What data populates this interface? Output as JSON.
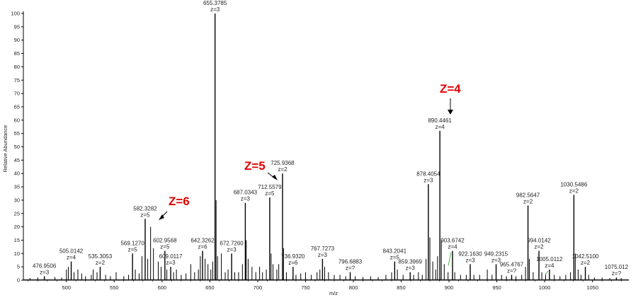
{
  "chart_data": {
    "type": "bar",
    "xlabel": "m/z",
    "ylabel": "Relative Abundance",
    "xlim": [
      455,
      1088
    ],
    "ylim": [
      0,
      100
    ],
    "xticks": [
      500,
      550,
      600,
      650,
      700,
      750,
      800,
      850,
      900,
      950,
      1000,
      1050
    ],
    "yticks": [
      0,
      5,
      10,
      15,
      20,
      25,
      30,
      35,
      40,
      45,
      50,
      55,
      60,
      65,
      70,
      75,
      80,
      85,
      90,
      95,
      100
    ],
    "peaks": [
      {
        "mz": 476.9506,
        "intensity": 1.5,
        "mz_label": "476.9506",
        "z_label": "z=3"
      },
      {
        "mz": 505.0142,
        "intensity": 7,
        "mz_label": "505.0142",
        "z_label": "z=4"
      },
      {
        "mz": 535.3053,
        "intensity": 5,
        "mz_label": "535.3053",
        "z_label": "z=2"
      },
      {
        "mz": 569.127,
        "intensity": 10,
        "mz_label": "569.1270",
        "z_label": "z=5"
      },
      {
        "mz": 582.3282,
        "intensity": 23,
        "mz_label": "582.3282",
        "z_label": "z=5"
      },
      {
        "mz": 602.9568,
        "intensity": 11,
        "mz_label": "602.9568",
        "z_label": "z=5"
      },
      {
        "mz": 609.0117,
        "intensity": 5,
        "mz_label": "609.0117",
        "z_label": "z=3"
      },
      {
        "mz": 642.3262,
        "intensity": 11,
        "mz_label": "642.3262",
        "z_label": "z=6"
      },
      {
        "mz": 655.3785,
        "intensity": 100,
        "mz_label": "655.3785",
        "z_label": "z=3"
      },
      {
        "mz": 672.726,
        "intensity": 10,
        "mz_label": "672.7260",
        "z_label": "z=3"
      },
      {
        "mz": 687.0343,
        "intensity": 29,
        "mz_label": "687.0343",
        "z_label": "z=3"
      },
      {
        "mz": 712.5579,
        "intensity": 31,
        "mz_label": "712.5579",
        "z_label": "z=5"
      },
      {
        "mz": 725.9368,
        "intensity": 40,
        "mz_label": "725.9368",
        "z_label": "z=2"
      },
      {
        "mz": 736.932,
        "intensity": 5,
        "mz_label": "736.9320",
        "z_label": "z=6"
      },
      {
        "mz": 767.7273,
        "intensity": 8,
        "mz_label": "767.7273",
        "z_label": "z=3"
      },
      {
        "mz": 796.6883,
        "intensity": 3,
        "mz_label": "796.6883",
        "z_label": "z=?"
      },
      {
        "mz": 843.2041,
        "intensity": 7,
        "mz_label": "843.2041",
        "z_label": "z=5"
      },
      {
        "mz": 859.3969,
        "intensity": 3,
        "mz_label": "859.3969",
        "z_label": "z=3"
      },
      {
        "mz": 878.4054,
        "intensity": 36,
        "mz_label": "878.4054",
        "z_label": "z=3"
      },
      {
        "mz": 890.4461,
        "intensity": 56,
        "mz_label": "890.4461",
        "z_label": "z=4"
      },
      {
        "mz": 903.6742,
        "intensity": 11,
        "mz_label": "903.6742",
        "z_label": "z=4"
      },
      {
        "mz": 922.163,
        "intensity": 6,
        "mz_label": "922.1630",
        "z_label": "z=3"
      },
      {
        "mz": 949.2315,
        "intensity": 6,
        "mz_label": "949.2315",
        "z_label": "z=3"
      },
      {
        "mz": 965.4767,
        "intensity": 2,
        "mz_label": "965.4767",
        "z_label": "z=?"
      },
      {
        "mz": 982.5647,
        "intensity": 28,
        "mz_label": "982.5647",
        "z_label": "z=2"
      },
      {
        "mz": 994.0142,
        "intensity": 11,
        "mz_label": "994.0142",
        "z_label": "z=2"
      },
      {
        "mz": 1005.0112,
        "intensity": 4,
        "mz_label": "1005.0112",
        "z_label": "z=4"
      },
      {
        "mz": 1030.5486,
        "intensity": 32,
        "mz_label": "1030.5486",
        "z_label": "z=2"
      },
      {
        "mz": 1042.51,
        "intensity": 5,
        "mz_label": "1042.5100",
        "z_label": "z=2"
      },
      {
        "mz": 1075.012,
        "intensity": 1,
        "mz_label": "1075.012",
        "z_label": "z=?"
      }
    ],
    "minor_peaks": [
      {
        "mz": 462,
        "intensity": 0.8
      },
      {
        "mz": 470,
        "intensity": 1
      },
      {
        "mz": 488,
        "intensity": 1.2
      },
      {
        "mz": 495,
        "intensity": 1
      },
      {
        "mz": 500,
        "intensity": 4
      },
      {
        "mz": 502,
        "intensity": 5
      },
      {
        "mz": 508,
        "intensity": 3
      },
      {
        "mz": 512,
        "intensity": 4
      },
      {
        "mz": 516,
        "intensity": 2.5
      },
      {
        "mz": 520,
        "intensity": 1.5
      },
      {
        "mz": 526,
        "intensity": 2
      },
      {
        "mz": 528,
        "intensity": 4
      },
      {
        "mz": 532,
        "intensity": 3
      },
      {
        "mz": 541,
        "intensity": 2
      },
      {
        "mz": 546,
        "intensity": 1.5
      },
      {
        "mz": 552,
        "intensity": 3
      },
      {
        "mz": 560,
        "intensity": 1.5
      },
      {
        "mz": 565,
        "intensity": 2
      },
      {
        "mz": 572,
        "intensity": 4
      },
      {
        "mz": 576,
        "intensity": 2.5
      },
      {
        "mz": 579,
        "intensity": 9
      },
      {
        "mz": 585,
        "intensity": 8
      },
      {
        "mz": 588,
        "intensity": 20
      },
      {
        "mz": 591,
        "intensity": 12
      },
      {
        "mz": 596,
        "intensity": 7
      },
      {
        "mz": 599,
        "intensity": 5
      },
      {
        "mz": 605,
        "intensity": 4
      },
      {
        "mz": 612,
        "intensity": 3
      },
      {
        "mz": 615,
        "intensity": 4
      },
      {
        "mz": 620,
        "intensity": 2
      },
      {
        "mz": 625,
        "intensity": 2.5
      },
      {
        "mz": 630,
        "intensity": 6
      },
      {
        "mz": 634,
        "intensity": 3
      },
      {
        "mz": 638,
        "intensity": 4
      },
      {
        "mz": 640,
        "intensity": 9
      },
      {
        "mz": 645,
        "intensity": 8
      },
      {
        "mz": 648,
        "intensity": 6
      },
      {
        "mz": 651,
        "intensity": 4
      },
      {
        "mz": 653,
        "intensity": 7
      },
      {
        "mz": 656.5,
        "intensity": 30
      },
      {
        "mz": 658,
        "intensity": 9
      },
      {
        "mz": 662,
        "intensity": 10
      },
      {
        "mz": 666,
        "intensity": 3
      },
      {
        "mz": 669,
        "intensity": 4
      },
      {
        "mz": 676,
        "intensity": 3
      },
      {
        "mz": 680,
        "intensity": 3
      },
      {
        "mz": 684,
        "intensity": 6
      },
      {
        "mz": 688,
        "intensity": 15
      },
      {
        "mz": 690,
        "intensity": 8
      },
      {
        "mz": 694,
        "intensity": 5
      },
      {
        "mz": 698,
        "intensity": 3
      },
      {
        "mz": 702,
        "intensity": 5
      },
      {
        "mz": 705,
        "intensity": 3
      },
      {
        "mz": 709,
        "intensity": 4
      },
      {
        "mz": 714,
        "intensity": 10
      },
      {
        "mz": 716,
        "intensity": 6
      },
      {
        "mz": 720,
        "intensity": 4
      },
      {
        "mz": 722,
        "intensity": 6
      },
      {
        "mz": 727,
        "intensity": 12
      },
      {
        "mz": 730,
        "intensity": 3
      },
      {
        "mz": 740,
        "intensity": 2
      },
      {
        "mz": 745,
        "intensity": 2.5
      },
      {
        "mz": 750,
        "intensity": 3
      },
      {
        "mz": 756,
        "intensity": 2
      },
      {
        "mz": 762,
        "intensity": 3
      },
      {
        "mz": 765,
        "intensity": 4
      },
      {
        "mz": 770,
        "intensity": 5
      },
      {
        "mz": 774,
        "intensity": 3
      },
      {
        "mz": 780,
        "intensity": 2
      },
      {
        "mz": 786,
        "intensity": 2
      },
      {
        "mz": 792,
        "intensity": 1.5
      },
      {
        "mz": 802,
        "intensity": 1.5
      },
      {
        "mz": 810,
        "intensity": 1.2
      },
      {
        "mz": 818,
        "intensity": 1.5
      },
      {
        "mz": 826,
        "intensity": 1.2
      },
      {
        "mz": 834,
        "intensity": 2
      },
      {
        "mz": 840,
        "intensity": 3
      },
      {
        "mz": 846,
        "intensity": 4
      },
      {
        "mz": 852,
        "intensity": 2
      },
      {
        "mz": 863,
        "intensity": 2
      },
      {
        "mz": 868,
        "intensity": 3
      },
      {
        "mz": 872,
        "intensity": 2
      },
      {
        "mz": 876,
        "intensity": 8
      },
      {
        "mz": 880,
        "intensity": 16
      },
      {
        "mz": 883,
        "intensity": 7
      },
      {
        "mz": 886,
        "intensity": 4
      },
      {
        "mz": 888,
        "intensity": 9
      },
      {
        "mz": 892,
        "intensity": 15
      },
      {
        "mz": 895,
        "intensity": 6
      },
      {
        "mz": 899,
        "intensity": 3
      },
      {
        "mz": 906,
        "intensity": 3
      },
      {
        "mz": 912,
        "intensity": 2
      },
      {
        "mz": 918,
        "intensity": 2
      },
      {
        "mz": 926,
        "intensity": 2
      },
      {
        "mz": 932,
        "intensity": 2
      },
      {
        "mz": 940,
        "intensity": 4
      },
      {
        "mz": 945,
        "intensity": 2
      },
      {
        "mz": 955,
        "intensity": 2
      },
      {
        "mz": 960,
        "intensity": 1.5
      },
      {
        "mz": 970,
        "intensity": 1.5
      },
      {
        "mz": 976,
        "intensity": 2
      },
      {
        "mz": 980,
        "intensity": 5
      },
      {
        "mz": 984,
        "intensity": 8
      },
      {
        "mz": 988,
        "intensity": 3
      },
      {
        "mz": 997,
        "intensity": 3
      },
      {
        "mz": 1001,
        "intensity": 2
      },
      {
        "mz": 1010,
        "intensity": 2
      },
      {
        "mz": 1016,
        "intensity": 1.5
      },
      {
        "mz": 1022,
        "intensity": 2
      },
      {
        "mz": 1027,
        "intensity": 3
      },
      {
        "mz": 1032,
        "intensity": 10
      },
      {
        "mz": 1035,
        "intensity": 4
      },
      {
        "mz": 1038,
        "intensity": 2
      },
      {
        "mz": 1046,
        "intensity": 2
      },
      {
        "mz": 1052,
        "intensity": 1
      },
      {
        "mz": 1060,
        "intensity": 1
      },
      {
        "mz": 1068,
        "intensity": 0.8
      },
      {
        "mz": 1080,
        "intensity": 0.8
      }
    ],
    "annotations": [
      {
        "text": "Z=6",
        "target_mz": 590,
        "target_y": 24
      },
      {
        "text": "Z=5",
        "target_mz": 708,
        "target_y": 40
      },
      {
        "text": "Z=4",
        "target_mz": 890.4461,
        "target_y": 62
      }
    ],
    "colors": {
      "line": "#000000",
      "annotation": "#e00000",
      "connector": "#22aa22"
    }
  }
}
